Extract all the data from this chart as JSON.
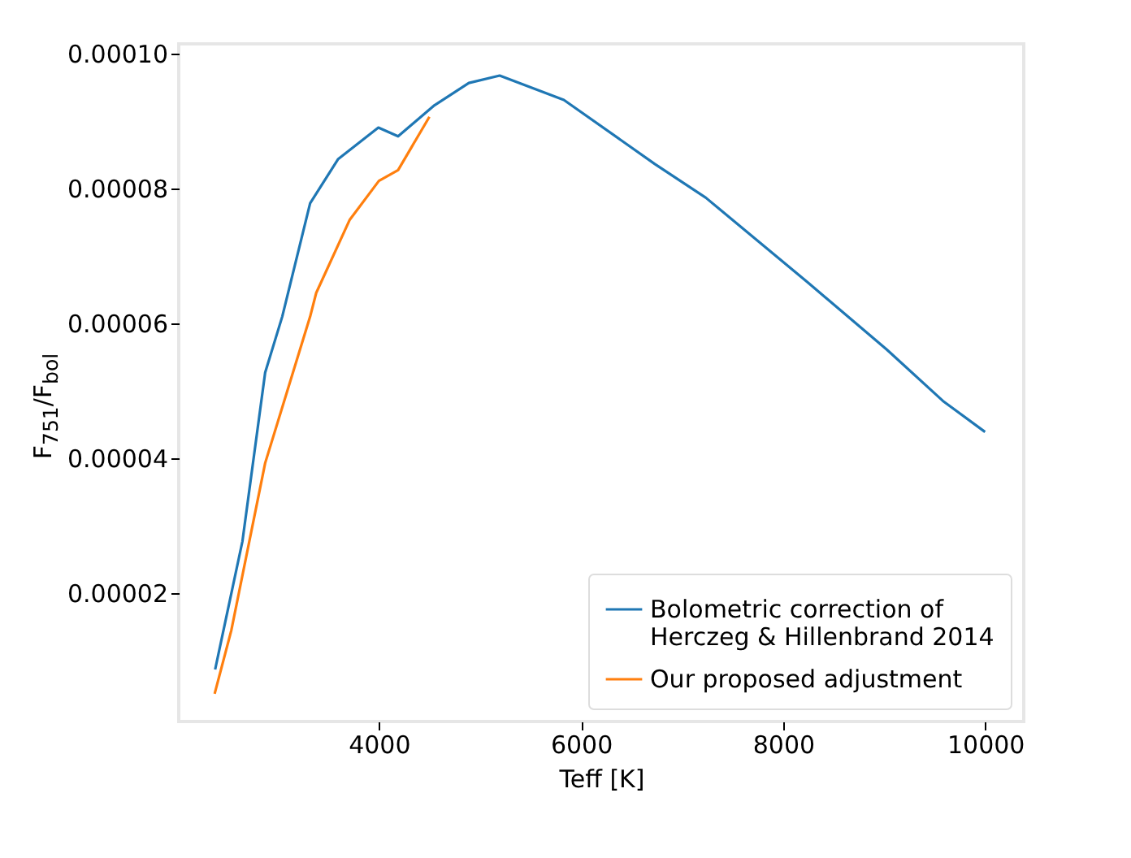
{
  "chart_data": {
    "type": "line",
    "xlabel": "Teff [K]",
    "ylabel": "F$_{751}$/F$_{bol}$",
    "xlim": [
      2020,
      10380
    ],
    "xticks": [
      4000,
      6000,
      8000,
      10000
    ],
    "ylim": [
      1e-06,
      0.0001014
    ],
    "yticks": [
      {
        "value": 2e-05,
        "label": "0.00002"
      },
      {
        "value": 4e-05,
        "label": "0.00004"
      },
      {
        "value": 6e-05,
        "label": "0.00006"
      },
      {
        "value": 8e-05,
        "label": "0.00008"
      },
      {
        "value": 0.0001,
        "label": "0.00010"
      }
    ],
    "grid": false,
    "legend": "bottom right",
    "series": [
      {
        "name": "Bolometric correction of\n Herczeg & Hillenbrand 2014",
        "color": "#1f77b4",
        "x": [
          2380,
          2485,
          2650,
          2875,
          3044,
          3320,
          3595,
          3995,
          4190,
          4550,
          4890,
          5195,
          5830,
          6730,
          7235,
          8240,
          9025,
          9580,
          9997
        ],
        "values": [
          8.7e-06,
          1.61e-05,
          2.77e-05,
          5.27e-05,
          6.1e-05,
          7.78e-05,
          8.43e-05,
          8.9e-05,
          8.77e-05,
          9.23e-05,
          9.56e-05,
          9.67e-05,
          9.31e-05,
          8.36e-05,
          7.86e-05,
          6.61e-05,
          5.61e-05,
          4.85e-05,
          4.39e-05
        ]
      },
      {
        "name": "Our proposed adjustment",
        "color": "#ff7f0e",
        "x": [
          2375,
          2540,
          2875,
          3320,
          3380,
          3710,
          4000,
          4190,
          4500
        ],
        "values": [
          5.1e-06,
          1.45e-05,
          3.93e-05,
          6.1e-05,
          6.45e-05,
          7.53e-05,
          8.11e-05,
          8.27e-05,
          9.06e-05
        ]
      }
    ]
  }
}
